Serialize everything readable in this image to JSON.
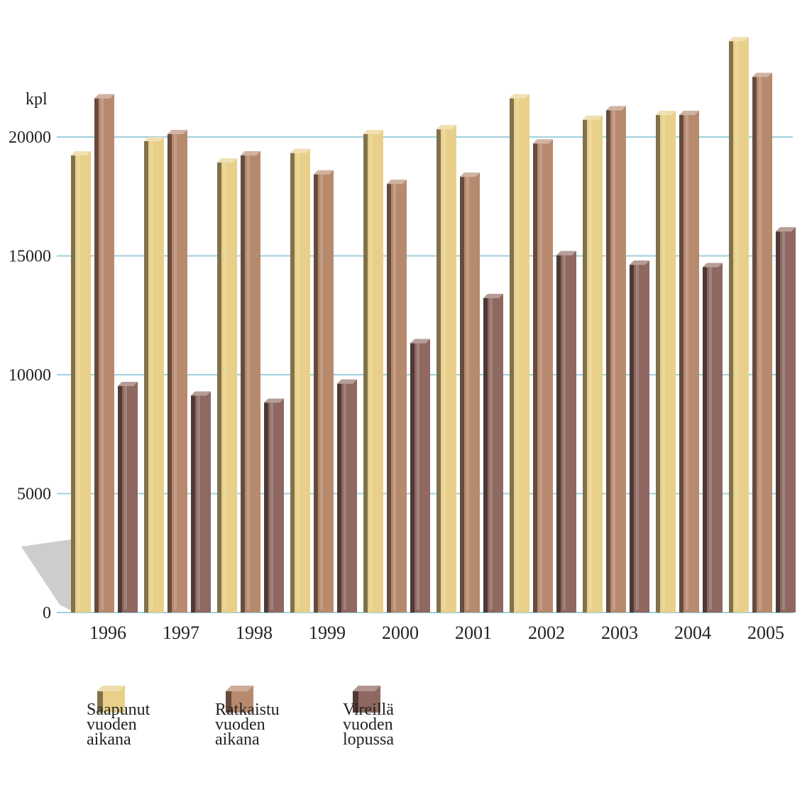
{
  "chart_data": {
    "type": "bar",
    "ylabel": "kpl",
    "categories": [
      "1996",
      "1997",
      "1998",
      "1999",
      "2000",
      "2001",
      "2002",
      "2003",
      "2004",
      "2005"
    ],
    "yticks": [
      "0",
      "5000",
      "10000",
      "15000",
      "20000"
    ],
    "ylim": [
      0,
      25000
    ],
    "grid": true,
    "legend_position": "bottom-left",
    "series": [
      {
        "name": "Saapunut vuoden aikana",
        "color": "#e8d08a",
        "values": [
          19400,
          20000,
          19100,
          19500,
          20300,
          20500,
          21800,
          20900,
          21100,
          24200
        ]
      },
      {
        "name": "Ratkaistu vuoden aikana",
        "color": "#b78a6e",
        "values": [
          21800,
          20300,
          19400,
          18600,
          18200,
          18500,
          19900,
          21300,
          21100,
          22700
        ]
      },
      {
        "name": "Vireillä vuoden lopussa",
        "color": "#8e6861",
        "values": [
          9700,
          9300,
          9000,
          9800,
          11500,
          13400,
          15200,
          14800,
          14700,
          16200
        ]
      }
    ]
  },
  "legend": [
    {
      "label": "Saapunut\nvuoden\naikana"
    },
    {
      "label": "Ratkaistu\nvuoden\naikana"
    },
    {
      "label": "Vireillä\nvuoden\nlopussa"
    }
  ]
}
